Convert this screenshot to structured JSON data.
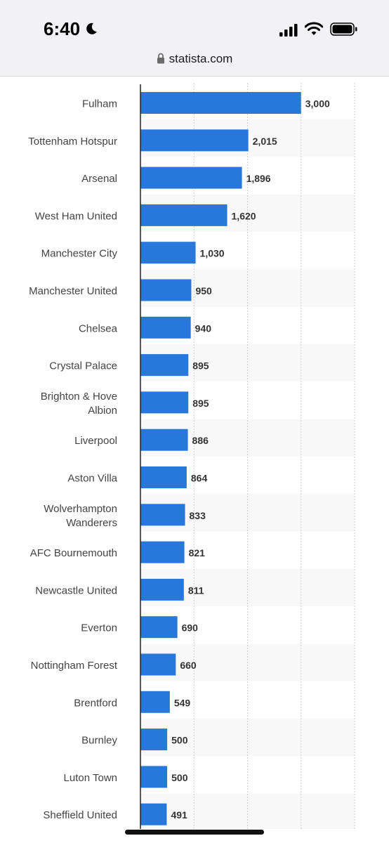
{
  "status_bar": {
    "time": "6:40",
    "icons": [
      "moon-icon",
      "cellular-signal-icon",
      "wifi-icon",
      "battery-icon"
    ]
  },
  "browser": {
    "url": "statista.com",
    "lock_icon": "lock-icon"
  },
  "colors": {
    "bar": "#2878dc",
    "band": "#f8f8f8",
    "axis": "#222222",
    "grid": "#cfcfcf"
  },
  "chart_data": {
    "type": "bar",
    "orientation": "horizontal",
    "categories": [
      "Fulham",
      "Tottenham Hotspur",
      "Arsenal",
      "West Ham United",
      "Manchester City",
      "Manchester United",
      "Chelsea",
      "Crystal Palace",
      "Brighton & Hove Albion",
      "Liverpool",
      "Aston Villa",
      "Wolverhampton Wanderers",
      "AFC Bournemouth",
      "Newcastle United",
      "Everton",
      "Nottingham Forest",
      "Brentford",
      "Burnley",
      "Luton Town",
      "Sheffield United"
    ],
    "category_lines": [
      [
        "Fulham"
      ],
      [
        "Tottenham Hotspur"
      ],
      [
        "Arsenal"
      ],
      [
        "West Ham United"
      ],
      [
        "Manchester City"
      ],
      [
        "Manchester United"
      ],
      [
        "Chelsea"
      ],
      [
        "Crystal Palace"
      ],
      [
        "Brighton & Hove",
        "Albion"
      ],
      [
        "Liverpool"
      ],
      [
        "Aston Villa"
      ],
      [
        "Wolverhampton",
        "Wanderers"
      ],
      [
        "AFC Bournemouth"
      ],
      [
        "Newcastle United"
      ],
      [
        "Everton"
      ],
      [
        "Nottingham Forest"
      ],
      [
        "Brentford"
      ],
      [
        "Burnley"
      ],
      [
        "Luton Town"
      ],
      [
        "Sheffield United"
      ]
    ],
    "values": [
      3000,
      2015,
      1896,
      1620,
      1030,
      950,
      940,
      895,
      895,
      886,
      864,
      833,
      821,
      811,
      690,
      660,
      549,
      500,
      500,
      491
    ],
    "value_labels": [
      "3,000",
      "2,015",
      "1,896",
      "1,620",
      "1,030",
      "950",
      "940",
      "895",
      "895",
      "886",
      "864",
      "833",
      "821",
      "811",
      "690",
      "660",
      "549",
      "500",
      "500",
      "491"
    ],
    "xlim": [
      0,
      4000
    ],
    "x_gridlines": [
      1000,
      2000,
      3000,
      4000
    ],
    "grid": true,
    "alternating_bands": true,
    "title": "",
    "xlabel": "",
    "ylabel": ""
  }
}
